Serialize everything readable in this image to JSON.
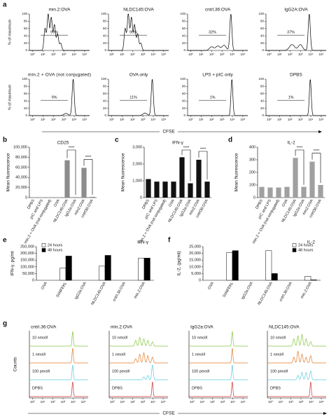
{
  "panel_a": {
    "letter": "a",
    "y_label": "% of maximum",
    "x_label": "CFSE",
    "xlim": [
      0.5,
      300000
    ],
    "xticks": [
      {
        "value": 1,
        "label": "10⁰"
      },
      {
        "value": 10,
        "label": "10¹"
      },
      {
        "value": 100,
        "label": "10²"
      },
      {
        "value": 1000,
        "label": "10³"
      },
      {
        "value": 10000,
        "label": "10⁴"
      },
      {
        "value": 100000,
        "label": "10⁵"
      }
    ],
    "ylim": [
      0,
      100
    ],
    "yticks": [
      0,
      20,
      40,
      60,
      80,
      100
    ],
    "plots": [
      {
        "title": "min.2:OVA",
        "gate": "99%"
      },
      {
        "title": "NLDC145:OVA",
        "gate": "99%"
      },
      {
        "title": "cntrl.36:OVA",
        "gate": "32%"
      },
      {
        "title": "IgG2A:OVA",
        "gate": "37%"
      },
      {
        "title": "min.2 + OVA (not conjugated)",
        "gate": "9%"
      },
      {
        "title": "OVA only",
        "gate": "11%"
      },
      {
        "title": "LPS + pIC only",
        "gate": "1%"
      },
      {
        "title": "DPBS",
        "gate": "1%"
      }
    ]
  },
  "chart_data": [
    {
      "type": "bar",
      "panel": "b",
      "title": "CD25",
      "y_label": "Mean fluorescence",
      "color": "#8c8c8c",
      "categories": [
        "DPBS",
        "pIC and LPS",
        "min.2 + OVA (not conjugated)",
        "OVA",
        "NLDC145:OVA",
        "IgG2a:OVA",
        "min2:OVA",
        "cntrl36:OVA"
      ],
      "values": [
        500,
        500,
        500,
        500,
        74000,
        1000,
        59000,
        1500
      ],
      "ylim": [
        0,
        100000
      ],
      "yticks": [
        0,
        {
          "value": 20000,
          "label": "20,000"
        },
        {
          "value": 40000,
          "label": "40,000"
        },
        {
          "value": 60000,
          "label": "60,000"
        },
        {
          "value": 80000,
          "label": "80,000"
        },
        {
          "value": 100000,
          "label": "100,000"
        }
      ],
      "significance": [
        {
          "label": "****",
          "from": "NLDC145:OVA",
          "to": "IgG2a:OVA"
        },
        {
          "label": "****",
          "from": "min2:OVA",
          "to": "cntrl36:OVA"
        }
      ]
    },
    {
      "type": "bar",
      "panel": "c",
      "title": "IFN-γ",
      "y_label": "Mean fluorescence",
      "color": "#111111",
      "categories": [
        "DPBS",
        "pIC and LPS",
        "min.2 + OVA (not conjugated)",
        "OVA",
        "NLDC145:OVA",
        "IgG2a:OVA",
        "min2:OVA",
        "cntrl36:OVA"
      ],
      "values": [
        1100,
        950,
        950,
        950,
        2400,
        850,
        2250,
        950
      ],
      "ylim": [
        0,
        3000
      ],
      "yticks": [
        0,
        {
          "value": 1000,
          "label": "1,000"
        },
        {
          "value": 2000,
          "label": "2,000"
        },
        {
          "value": 3000,
          "label": "3,000"
        }
      ],
      "significance": [
        {
          "label": "****",
          "from": "NLDC145:OVA",
          "to": "IgG2a:OVA"
        },
        {
          "label": "****",
          "from": "min2:OVA",
          "to": "cntrl36:OVA"
        }
      ]
    },
    {
      "type": "bar",
      "panel": "d",
      "title": "IL-2",
      "y_label": "Mean fluorescence",
      "color": "#a0a0a0",
      "categories": [
        "DPBS",
        "pIC and LPS",
        "min.2 + OVA (not conjugated)",
        "OVA",
        "NLDC145:OVA",
        "IgG2a:OVA",
        "min2:OVA",
        "cntrl36:OVA"
      ],
      "values": [
        85,
        80,
        80,
        85,
        315,
        85,
        285,
        100
      ],
      "ylim": [
        0,
        400
      ],
      "yticks": [
        0,
        100,
        200,
        300,
        400
      ],
      "significance": [
        {
          "label": "****",
          "from": "NLDC145:OVA",
          "to": "IgG2a:OVA"
        },
        {
          "label": "****",
          "from": "min2:OVA",
          "to": "cntrl36:OVA"
        }
      ]
    },
    {
      "type": "bar",
      "panel": "e",
      "title": "IFN-γ",
      "y_label": "IFN-γ, pg/ml",
      "legend": "upper left",
      "categories": [
        "OVA",
        "SIINFEKL",
        "IgG2a:OVA",
        "NLDC145:OVA",
        "cntrl.36:OVA",
        "min.2:OVA"
      ],
      "series": [
        {
          "name": "24 hours",
          "color": "#ffffff",
          "values": [
            0,
            90000,
            0,
            105000,
            0,
            165000
          ]
        },
        {
          "name": "48 hours",
          "color": "#000000",
          "values": [
            0,
            180000,
            0,
            185000,
            0,
            165000
          ]
        }
      ],
      "ylim": [
        0,
        250000
      ],
      "yticks": [
        0,
        {
          "value": 50000,
          "label": "50,000"
        },
        {
          "value": 100000,
          "label": "100,000"
        },
        {
          "value": 150000,
          "label": "150,000"
        },
        {
          "value": 200000,
          "label": "200,000"
        },
        {
          "value": 250000,
          "label": "250,000"
        }
      ]
    },
    {
      "type": "bar",
      "panel": "f",
      "title": "IL-2",
      "y_label": "IL-2, (pg/ml)",
      "legend": "upper right",
      "categories": [
        "OVA",
        "SIINFEKL",
        "IgG2a:OVA",
        "NLDC145:OVA",
        "cntrl.36:OVA",
        "min.2:OVA"
      ],
      "series": [
        {
          "name": "24 hours",
          "color": "#ffffff",
          "values": [
            0,
            20500,
            0,
            22000,
            0,
            3000
          ]
        },
        {
          "name": "48 hours",
          "color": "#000000",
          "values": [
            0,
            22000,
            0,
            5000,
            0,
            300
          ]
        }
      ],
      "ylim": [
        0,
        25000
      ],
      "yticks": [
        0,
        {
          "value": 5000,
          "label": "5,000"
        },
        {
          "value": 10000,
          "label": "10,000"
        },
        {
          "value": 15000,
          "label": "15,000"
        },
        {
          "value": 20000,
          "label": "20,000"
        },
        {
          "value": 25000,
          "label": "25,000"
        }
      ]
    }
  ],
  "panel_g": {
    "letter": "g",
    "y_label": "Counts",
    "x_label": "CFSE",
    "xlim": [
      0.5,
      300000
    ],
    "xticks": [
      {
        "value": 1,
        "label": "10⁰"
      },
      {
        "value": 10,
        "label": "10¹"
      },
      {
        "value": 100,
        "label": "10²"
      },
      {
        "value": 1000,
        "label": "10³"
      },
      {
        "value": 10000,
        "label": "10⁴"
      },
      {
        "value": 100000,
        "label": "10⁵"
      }
    ],
    "rows": [
      {
        "label": "10 nmol/l",
        "color": "#86c440"
      },
      {
        "label": "1 nmol/l",
        "color": "#e07b2a"
      },
      {
        "label": "100 pmol/l",
        "color": "#5ec8e0"
      },
      {
        "label": "DPBS",
        "color": "#d03030"
      }
    ],
    "plots": [
      {
        "title": "cntrl.36:OVA"
      },
      {
        "title": "min.2:OVA"
      },
      {
        "title": "IgG2a:OVA"
      },
      {
        "title": "NLDC145:OVA"
      }
    ]
  }
}
